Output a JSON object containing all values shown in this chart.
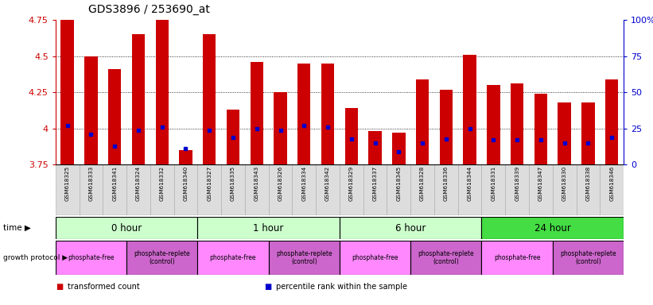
{
  "title": "GDS3896 / 253690_at",
  "samples": [
    "GSM618325",
    "GSM618333",
    "GSM618341",
    "GSM618324",
    "GSM618332",
    "GSM618340",
    "GSM618327",
    "GSM618335",
    "GSM618343",
    "GSM618326",
    "GSM618334",
    "GSM618342",
    "GSM618329",
    "GSM618337",
    "GSM618345",
    "GSM618328",
    "GSM618336",
    "GSM618344",
    "GSM618331",
    "GSM618339",
    "GSM618347",
    "GSM618330",
    "GSM618338",
    "GSM618346"
  ],
  "bar_values": [
    4.75,
    4.5,
    4.41,
    4.65,
    4.75,
    3.85,
    4.65,
    4.13,
    4.46,
    4.25,
    4.45,
    4.45,
    4.14,
    3.98,
    3.97,
    4.34,
    4.27,
    4.51,
    4.3,
    4.31,
    4.24,
    4.18,
    4.18,
    4.34
  ],
  "blue_values": [
    4.02,
    3.96,
    3.88,
    3.99,
    4.01,
    3.86,
    3.99,
    3.94,
    4.0,
    3.99,
    4.02,
    4.01,
    3.93,
    3.9,
    3.84,
    3.9,
    3.93,
    4.0,
    3.92,
    3.92,
    3.92,
    3.9,
    3.9,
    3.94
  ],
  "bar_color": "#cc0000",
  "blue_color": "#0000cc",
  "ymin": 3.75,
  "ymax": 4.75,
  "yticks": [
    3.75,
    4.0,
    4.25,
    4.5,
    4.75
  ],
  "ytick_labels": [
    "3.75",
    "4",
    "4.25",
    "4.5",
    "4.75"
  ],
  "right_yticks": [
    0,
    25,
    50,
    75,
    100
  ],
  "right_ytick_labels": [
    "0",
    "25",
    "50",
    "75",
    "100%"
  ],
  "axis_color_left": "#cc0000",
  "axis_color_right": "#0000cc",
  "gridline_color": "#000000",
  "gridline_ticks": [
    4.0,
    4.25,
    4.5
  ],
  "plot_bg_color": "#ffffff",
  "fig_bg_color": "#ffffff",
  "sample_row_bg": "#dddddd",
  "time_groups": [
    {
      "label": "0 hour",
      "start": 0,
      "end": 6,
      "color": "#ccffcc"
    },
    {
      "label": "1 hour",
      "start": 6,
      "end": 12,
      "color": "#ccffcc"
    },
    {
      "label": "6 hour",
      "start": 12,
      "end": 18,
      "color": "#ccffcc"
    },
    {
      "label": "24 hour",
      "start": 18,
      "end": 24,
      "color": "#44dd44"
    }
  ],
  "prot_groups": [
    {
      "label": "phosphate-free",
      "start": 0,
      "end": 3,
      "color": "#ff88ff"
    },
    {
      "label": "phosphate-replete\n(control)",
      "start": 3,
      "end": 6,
      "color": "#cc66cc"
    },
    {
      "label": "phosphate-free",
      "start": 6,
      "end": 9,
      "color": "#ff88ff"
    },
    {
      "label": "phosphate-replete\n(control)",
      "start": 9,
      "end": 12,
      "color": "#cc66cc"
    },
    {
      "label": "phosphate-free",
      "start": 12,
      "end": 15,
      "color": "#ff88ff"
    },
    {
      "label": "phosphate-replete\n(control)",
      "start": 15,
      "end": 18,
      "color": "#cc66cc"
    },
    {
      "label": "phosphate-free",
      "start": 18,
      "end": 21,
      "color": "#ff88ff"
    },
    {
      "label": "phosphate-replete\n(control)",
      "start": 21,
      "end": 24,
      "color": "#cc66cc"
    }
  ],
  "time_label": "time ▶",
  "prot_label": "growth protocol ▶",
  "legend": [
    {
      "color": "#cc0000",
      "label": "transformed count"
    },
    {
      "color": "#0000cc",
      "label": "percentile rank within the sample"
    }
  ]
}
